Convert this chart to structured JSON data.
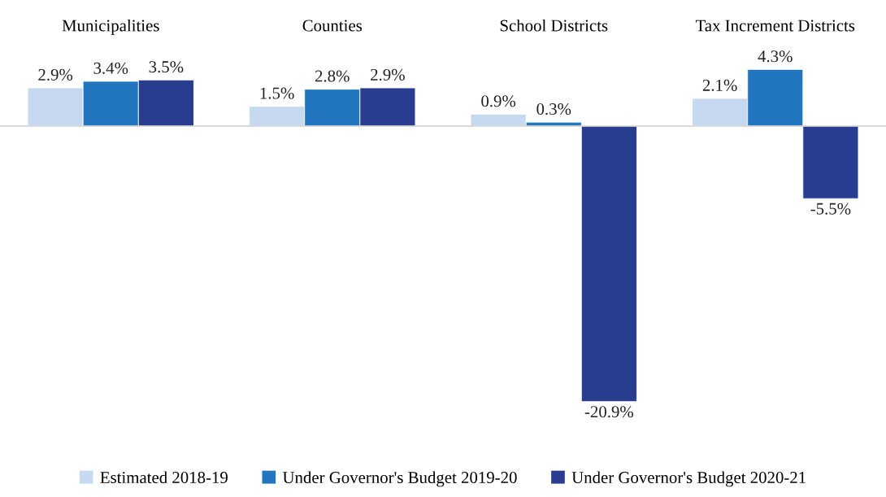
{
  "chart_data": {
    "type": "bar",
    "categories": [
      "Municipalities",
      "Counties",
      "School Districts",
      "Tax Increment Districts"
    ],
    "series": [
      {
        "name": "Estimated 2018-19",
        "color": "#c6d9f0",
        "values": [
          2.9,
          1.5,
          0.9,
          2.1
        ],
        "value_labels": [
          "2.9%",
          "1.5%",
          "0.9%",
          "2.1%"
        ]
      },
      {
        "name": "Under Governor's Budget 2019-20",
        "color": "#2176bf",
        "values": [
          3.4,
          2.8,
          0.3,
          4.3
        ],
        "value_labels": [
          "3.4%",
          "2.8%",
          "0.3%",
          "4.3%"
        ]
      },
      {
        "name": "Under Governor's Budget 2020-21",
        "color": "#283d8f",
        "values": [
          3.5,
          2.9,
          -20.9,
          -5.5
        ],
        "value_labels": [
          "3.5%",
          "2.9%",
          "-20.9%",
          "-5.5%"
        ]
      }
    ],
    "legend": "bottom",
    "grid": false
  }
}
